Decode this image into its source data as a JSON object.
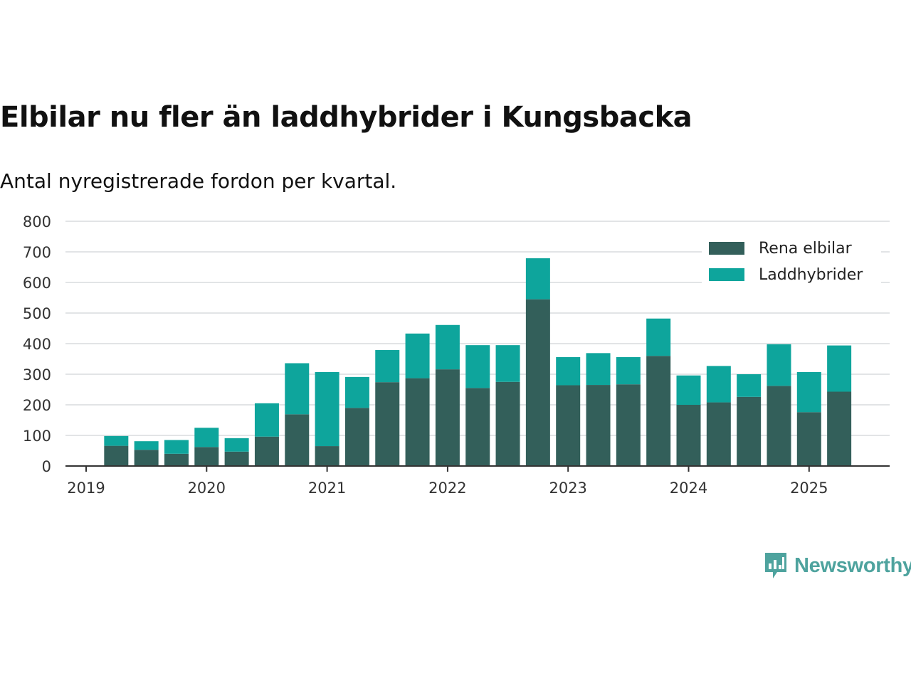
{
  "title": "Elbilar nu fler än laddhybrider i Kungsbacka",
  "subtitle": "Antal nyregistrerade fordon per kvartal.",
  "brand": "Newsworthy",
  "colors": {
    "rena_elbilar": "#335f5a",
    "laddhybrider": "#0ea59c"
  },
  "chart_data": {
    "type": "bar",
    "stacked": true,
    "x": [
      "2019-Q2",
      "2019-Q3",
      "2019-Q4",
      "2020-Q1",
      "2020-Q2",
      "2020-Q3",
      "2020-Q4",
      "2021-Q1",
      "2021-Q2",
      "2021-Q3",
      "2021-Q4",
      "2022-Q1",
      "2022-Q2",
      "2022-Q3",
      "2022-Q4",
      "2023-Q1",
      "2023-Q2",
      "2023-Q3",
      "2023-Q4",
      "2024-Q1",
      "2024-Q2",
      "2024-Q3",
      "2024-Q4",
      "2025-Q1",
      "2025-Q2"
    ],
    "series": [
      {
        "name": "Rena elbilar",
        "color": "#335f5a",
        "values": [
          66,
          53,
          40,
          62,
          47,
          96,
          169,
          65,
          190,
          274,
          287,
          316,
          255,
          275,
          545,
          264,
          265,
          267,
          360,
          200,
          208,
          226,
          262,
          176,
          243
        ]
      },
      {
        "name": "Laddhybrider",
        "color": "#0ea59c",
        "values": [
          32,
          28,
          45,
          63,
          44,
          109,
          167,
          242,
          101,
          105,
          146,
          145,
          140,
          120,
          134,
          92,
          104,
          89,
          122,
          96,
          119,
          74,
          136,
          131,
          151
        ]
      }
    ],
    "x_ticks": [
      "2019",
      "2020",
      "2021",
      "2022",
      "2023",
      "2024",
      "2025"
    ],
    "y_ticks": [
      0,
      100,
      200,
      300,
      400,
      500,
      600,
      700,
      800
    ],
    "ylim": [
      0,
      800
    ],
    "grid": true,
    "legend": "top-right"
  }
}
